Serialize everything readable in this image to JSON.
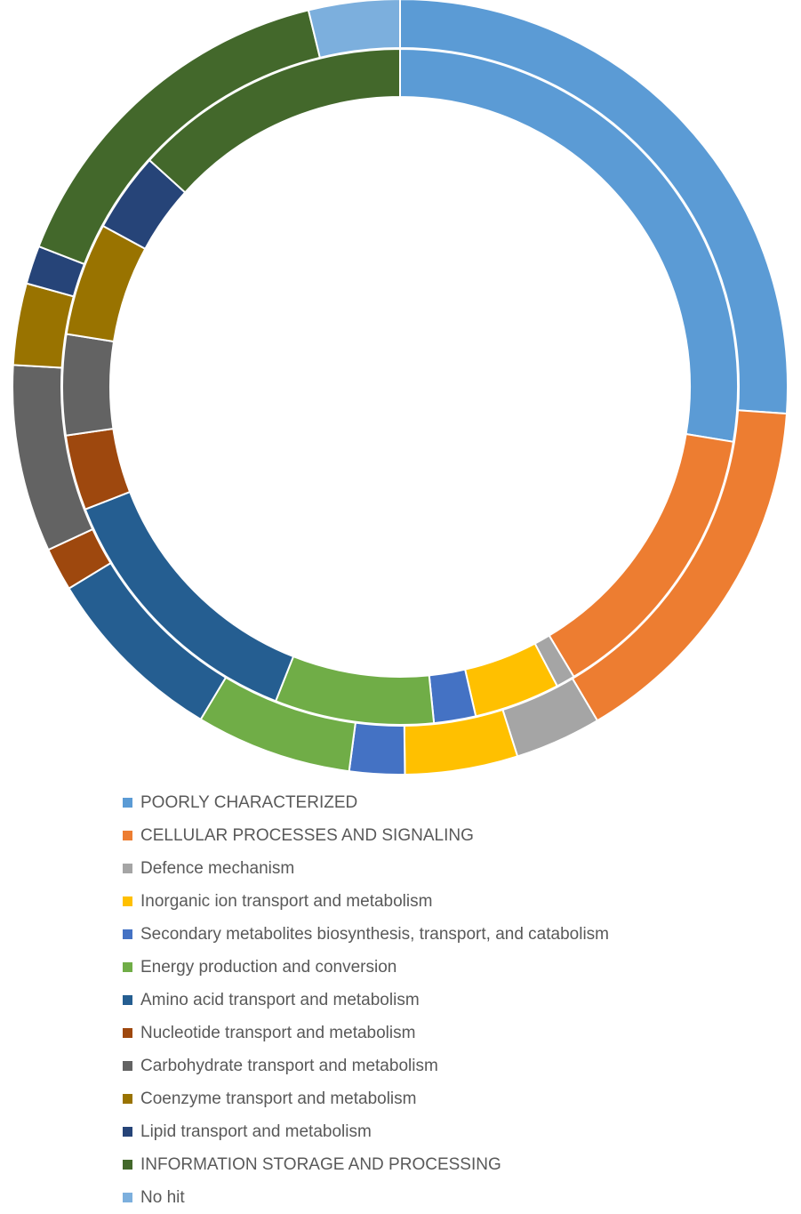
{
  "chart_data": {
    "type": "pie",
    "variant": "doughnut",
    "title": "",
    "legend_position": "bottom",
    "categories": [
      "POORLY CHARACTERIZED",
      "CELLULAR PROCESSES AND SIGNALING",
      "Defence mechanism",
      "Inorganic ion transport and metabolism",
      "Secondary metabolites biosynthesis, transport, and catabolism",
      "Energy production and conversion",
      "Amino acid transport and metabolism",
      "Nucleotide transport and metabolism",
      "Carbohydrate transport and metabolism",
      "Coenzyme transport and metabolism",
      "Lipid transport and metabolism",
      "INFORMATION STORAGE AND PROCESSING",
      "No hit"
    ],
    "colors": [
      "#5B9BD5",
      "#ED7D31",
      "#A5A5A5",
      "#FFC000",
      "#4472C4",
      "#70AD47",
      "#255E91",
      "#9E480E",
      "#636363",
      "#997300",
      "#264478",
      "#43682B",
      "#7CAFDD"
    ],
    "series": [
      {
        "ring": "outer",
        "values": [
          26.1,
          15.4,
          3.6,
          4.7,
          2.3,
          6.5,
          7.7,
          1.8,
          7.8,
          3.4,
          1.6,
          15.3,
          3.8
        ]
      },
      {
        "ring": "inner",
        "values": [
          27.6,
          13.8,
          0.9,
          4.1,
          2.0,
          7.6,
          13.1,
          3.6,
          4.8,
          5.4,
          3.8,
          13.3,
          0.0
        ]
      }
    ]
  }
}
